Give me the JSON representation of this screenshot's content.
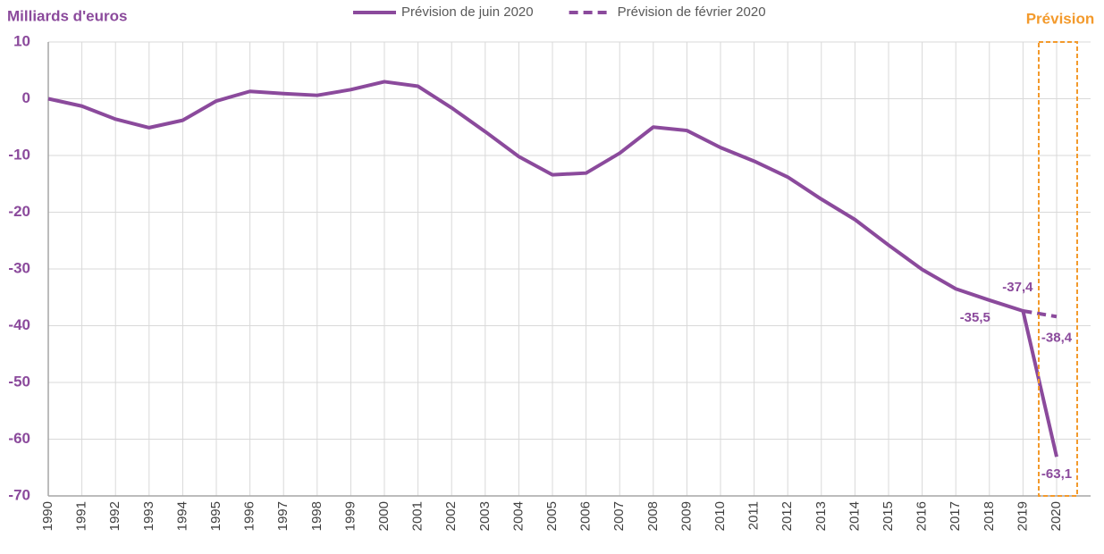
{
  "chart_data": {
    "type": "line",
    "y_label": "Milliards d'euros",
    "annotation": "Prévision",
    "categories": [
      "1990",
      "1991",
      "1992",
      "1993",
      "1994",
      "1995",
      "1996",
      "1997",
      "1998",
      "1999",
      "2000",
      "2001",
      "2002",
      "2003",
      "2004",
      "2005",
      "2006",
      "2007",
      "2008",
      "2009",
      "2010",
      "2011",
      "2012",
      "2013",
      "2014",
      "2015",
      "2016",
      "2017",
      "2018",
      "2019",
      "2020"
    ],
    "series": [
      {
        "name": "Prévision de juin 2020",
        "color": "#8b4a9c",
        "dash": false,
        "values": [
          0,
          -1.3,
          -3.6,
          -5.1,
          -3.8,
          -0.4,
          1.3,
          0.9,
          0.6,
          1.6,
          3.0,
          2.2,
          -1.6,
          -5.8,
          -10.2,
          -13.4,
          -13.1,
          -9.6,
          -5.0,
          -5.6,
          -8.6,
          -11.0,
          -13.8,
          -17.7,
          -21.3,
          -25.8,
          -30.1,
          -33.5,
          -35.5,
          -37.4,
          -63.1
        ],
        "value_labels": [
          null,
          null,
          null,
          null,
          null,
          null,
          null,
          null,
          null,
          null,
          null,
          null,
          null,
          null,
          null,
          null,
          null,
          null,
          null,
          null,
          null,
          null,
          null,
          null,
          null,
          null,
          null,
          null,
          "-35,5",
          "-37,4",
          "-63,1"
        ]
      },
      {
        "name": "Prévision de février 2020",
        "color": "#8b4a9c",
        "dash": true,
        "values": [
          null,
          null,
          null,
          null,
          null,
          null,
          null,
          null,
          null,
          null,
          null,
          null,
          null,
          null,
          null,
          null,
          null,
          null,
          null,
          null,
          null,
          null,
          null,
          null,
          null,
          null,
          null,
          null,
          null,
          -37.4,
          -38.4
        ],
        "value_labels": [
          null,
          null,
          null,
          null,
          null,
          null,
          null,
          null,
          null,
          null,
          null,
          null,
          null,
          null,
          null,
          null,
          null,
          null,
          null,
          null,
          null,
          null,
          null,
          null,
          null,
          null,
          null,
          null,
          null,
          null,
          "-38,4"
        ]
      }
    ],
    "ylim": [
      -70,
      10
    ],
    "yticks": [
      -70,
      -60,
      -50,
      -40,
      -30,
      -20,
      -10,
      0,
      10
    ],
    "grid": true,
    "legend": "top"
  }
}
